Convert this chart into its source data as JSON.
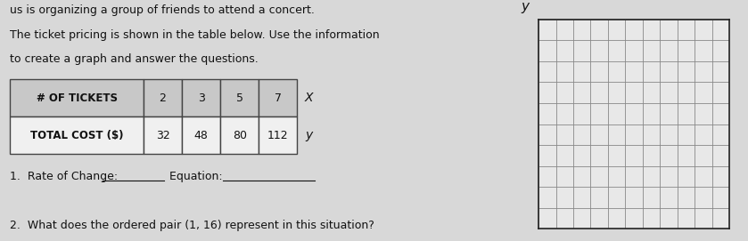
{
  "line1": "us is organizing a group of friends to attend a concert.",
  "line2": "The ticket pricing is shown in the table below. Use the information",
  "line3": "to create a graph and answer the questions.",
  "table_headers": [
    "# OF TICKETS",
    "2",
    "3",
    "5",
    "7"
  ],
  "table_row2": [
    "TOTAL COST ($)",
    "32",
    "48",
    "80",
    "112"
  ],
  "x_label": "X",
  "y_label_table": "y",
  "question1_a": "1.  Rate of Change: ",
  "question1_b": "Equation: ",
  "question2": "2.  What does the ordered pair (1, 16) represent in this situation?",
  "bg_color": "#d8d8d8",
  "paper_color": "#d8d8d8",
  "text_color": "#111111",
  "grid_rows": 10,
  "grid_cols": 11,
  "y_axis_label": "y",
  "table_header_bg": "#c8c8c8",
  "table_row_bg": "#f0f0f0",
  "table_border_color": "#444444",
  "grid_line_color": "#888888",
  "grid_bg": "#e8e8e8",
  "axis_color": "#222222"
}
